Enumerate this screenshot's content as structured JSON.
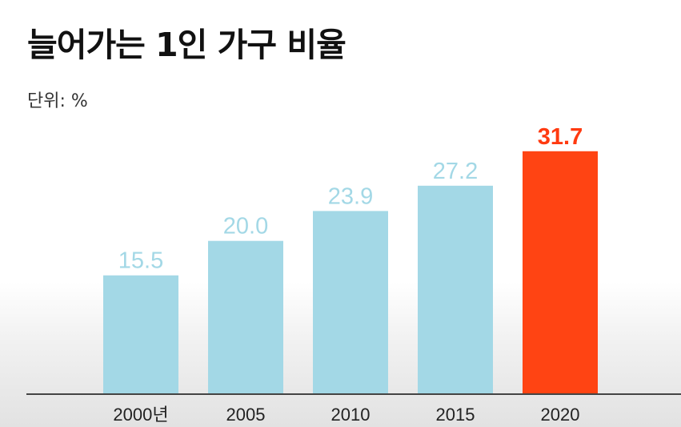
{
  "title": "늘어가는 1인 가구 비율",
  "unit_label": "단위: %",
  "colors": {
    "bar": "#a3d8e6",
    "highlight_bar": "#ff4413",
    "value_label": "#a3d8e6",
    "highlight_value_label": "#ff3a10",
    "axis": "#444444",
    "tick_label": "#222222"
  },
  "chart_data": {
    "type": "bar",
    "title": "늘어가는 1인 가구 비율",
    "unit": "단위: %",
    "categories": [
      "2000년",
      "2005",
      "2010",
      "2015",
      "2020"
    ],
    "values": [
      15.5,
      20.0,
      23.9,
      27.2,
      31.7
    ],
    "value_labels": [
      "15.5",
      "20.0",
      "23.9",
      "27.2",
      "31.7"
    ],
    "highlight_index": 4,
    "ylim": [
      0,
      34.5
    ],
    "grid": false,
    "legend": "none"
  }
}
